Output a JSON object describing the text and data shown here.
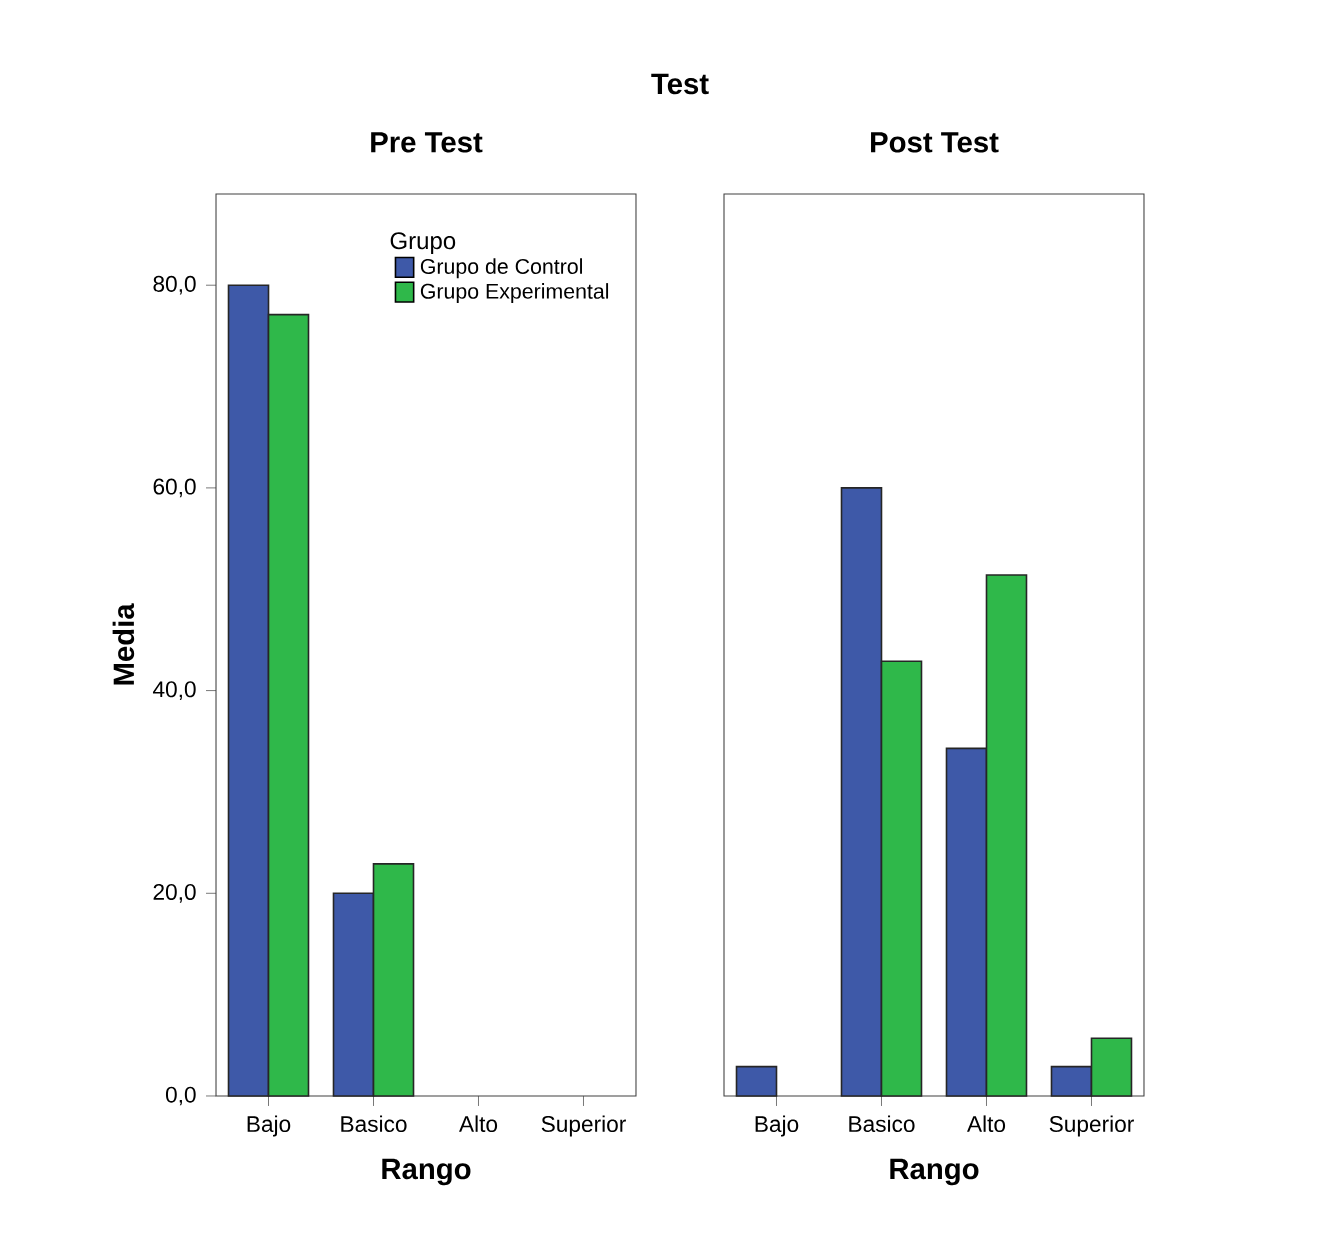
{
  "chart_data": [
    {
      "type": "bar",
      "title": "Pre Test",
      "annotations": [
        "Test"
      ],
      "xlabel": "Rango",
      "ylabel": "Media",
      "legend_title": "Grupo",
      "legend": "top right",
      "categories": [
        "Bajo",
        "Basico",
        "Alto",
        "Superior"
      ],
      "series": [
        {
          "name": "Grupo de Control",
          "color": "#3e59a8",
          "values": [
            80.0,
            20.0,
            null,
            null
          ]
        },
        {
          "name": "Grupo Experimental",
          "color": "#2fb84a",
          "values": [
            77.1,
            22.9,
            null,
            null
          ]
        }
      ],
      "ylim": [
        0,
        89
      ],
      "yticks": [
        {
          "value": 0,
          "label": "0,0"
        },
        {
          "value": 20,
          "label": "20,0"
        },
        {
          "value": 40,
          "label": "40,0"
        },
        {
          "value": 60,
          "label": "60,0"
        },
        {
          "value": 80,
          "label": "80,0"
        }
      ]
    },
    {
      "type": "bar",
      "title": "Post Test",
      "xlabel": "Rango",
      "categories": [
        "Bajo",
        "Basico",
        "Alto",
        "Superior"
      ],
      "tick_labels": "x",
      "series": [
        {
          "color": "#3e59a8",
          "values": [
            2.9,
            60.0,
            34.3,
            2.9
          ]
        },
        {
          "color": "#2fb84a",
          "values": [
            null,
            42.9,
            51.4,
            5.7
          ]
        }
      ],
      "ylim": [
        0,
        89
      ]
    }
  ]
}
